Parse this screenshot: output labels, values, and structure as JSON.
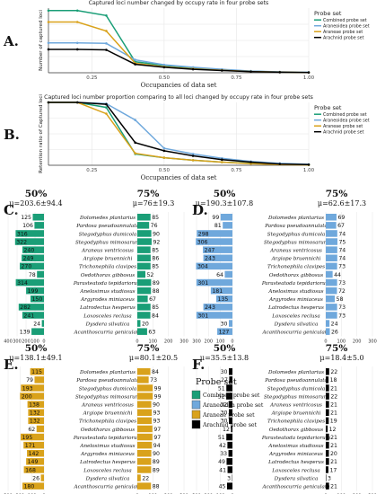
{
  "colors": {
    "combined": "#1a9e77",
    "araneoidea": "#6fa8dc",
    "araneae": "#d9a21b",
    "arachnid": "#000000",
    "olive": "#c8b400",
    "purple": "#8c7bd8",
    "e_value": "#c0392b",
    "grid": "#e6e6e6"
  },
  "species": [
    "Dolomedes plantarius",
    "Pardosa pseudoannulata",
    "Stegodyphus dumicola",
    "Stegodyphus mimosarum",
    "Araneus ventricosus",
    "Argiope bruennichi",
    "Trichonephila clavipes",
    "Oedothorax gibbosus",
    "Parasteatoda tepidariorum",
    "Anelosimus studiosus",
    "Argyrodes miniaceus",
    "Latrodectus hesperus",
    "Loxosceles reclusa",
    "Dysdera silvatica",
    "Acanthoscurria geniculata"
  ],
  "chart_data": [
    {
      "id": "A",
      "type": "line",
      "panel_label": "A.",
      "title": "Captured loci number changed by occupy rate in four probe sets",
      "xlabel": "Occupancies of data set",
      "ylabel": "Number of captured loci",
      "x": [
        0.1,
        0.2,
        0.3,
        0.4,
        0.5,
        0.6,
        0.7,
        0.8,
        0.9,
        1.0
      ],
      "xticks": [
        "0.25",
        "0.50",
        "0.75",
        "1.00"
      ],
      "xtick_values": [
        0.25,
        0.5,
        0.75,
        1.0
      ],
      "xlim": [
        0.1,
        1.0
      ],
      "ylim": [
        0,
        1300
      ],
      "grid": true,
      "legend_title": "Probe set",
      "legend_position": "right",
      "series": [
        {
          "name": "Combined probe set",
          "color_key": "combined",
          "values": [
            1250,
            1250,
            1150,
            220,
            150,
            100,
            60,
            30,
            15,
            8
          ]
        },
        {
          "name": "Araneoidea probe set",
          "color_key": "araneoidea",
          "values": [
            600,
            600,
            590,
            260,
            160,
            110,
            70,
            35,
            18,
            10
          ]
        },
        {
          "name": "Araneae probe set",
          "color_key": "araneae",
          "values": [
            1020,
            1020,
            840,
            190,
            120,
            80,
            50,
            25,
            12,
            6
          ]
        },
        {
          "name": "Arachnid probe set",
          "color_key": "arachnid",
          "values": [
            470,
            470,
            460,
            170,
            110,
            70,
            45,
            22,
            10,
            5
          ]
        }
      ]
    },
    {
      "id": "B",
      "type": "line",
      "panel_label": "B.",
      "title": "Captured loci number proportion comparing to all loci changed by occupy rate in four probe sets",
      "xlabel": "Occupancies of data set",
      "ylabel": "Retention ratio of Captured loci",
      "x": [
        0.1,
        0.2,
        0.3,
        0.4,
        0.5,
        0.6,
        0.7,
        0.8,
        0.9,
        1.0
      ],
      "xticks": [
        "0.25",
        "0.50",
        "0.75",
        "1.00"
      ],
      "xtick_values": [
        0.25,
        0.5,
        0.75,
        1.0
      ],
      "xlim": [
        0.1,
        1.0
      ],
      "ylim": [
        0,
        1.0
      ],
      "grid": true,
      "legend_title": "Probe set",
      "legend_position": "right",
      "series": [
        {
          "name": "Combined probe set",
          "color_key": "combined",
          "values": [
            1.0,
            1.0,
            0.92,
            0.18,
            0.12,
            0.08,
            0.05,
            0.03,
            0.015,
            0.008
          ]
        },
        {
          "name": "Araneoidea probe set",
          "color_key": "araneoidea",
          "values": [
            1.0,
            1.0,
            0.98,
            0.72,
            0.27,
            0.18,
            0.11,
            0.06,
            0.03,
            0.015
          ]
        },
        {
          "name": "Araneae probe set",
          "color_key": "araneae",
          "values": [
            1.0,
            1.0,
            0.82,
            0.19,
            0.12,
            0.08,
            0.05,
            0.025,
            0.012,
            0.006
          ]
        },
        {
          "name": "Arachnid probe set",
          "color_key": "arachnid",
          "values": [
            1.0,
            1.0,
            0.97,
            0.36,
            0.23,
            0.15,
            0.09,
            0.05,
            0.02,
            0.01
          ]
        }
      ]
    },
    {
      "id": "C",
      "type": "bar",
      "panel_label": "C.",
      "color_key": "combined",
      "left_header": "50%",
      "left_mu": "μ=203.6±94.4",
      "left_values": [
        125,
        106,
        316,
        322,
        240,
        249,
        270,
        78,
        314,
        199,
        150,
        282,
        241,
        24,
        139
      ],
      "left_ticks": [
        400,
        300,
        200,
        100,
        0
      ],
      "left_max": 400,
      "right_header": "75%",
      "right_mu": "μ=76±19.3",
      "right_values": [
        85,
        76,
        90,
        92,
        85,
        86,
        85,
        52,
        89,
        88,
        67,
        85,
        84,
        20,
        63
      ],
      "right_ticks": [
        0,
        100,
        200,
        300
      ],
      "right_max": 300
    },
    {
      "id": "D",
      "type": "bar",
      "panel_label": "D.",
      "color_key": "araneoidea",
      "left_header": "50%",
      "left_mu": "μ=190.3±107.8",
      "left_values": [
        99,
        81,
        298,
        306,
        247,
        243,
        304,
        64,
        301,
        181,
        135,
        243,
        301,
        30,
        127
      ],
      "left_ticks": [
        300,
        200,
        100,
        0
      ],
      "left_max": 300,
      "right_header": "75%",
      "right_mu": "μ=62.6±17.3",
      "right_values": [
        69,
        67,
        74,
        75,
        74,
        74,
        73,
        44,
        73,
        72,
        58,
        73,
        73,
        24,
        26
      ],
      "right_ticks": [
        0,
        100,
        200,
        300
      ],
      "right_max": 300
    },
    {
      "id": "E",
      "type": "bar",
      "panel_label": "E.",
      "color_key": "araneae",
      "left_header": "50%",
      "left_mu": "μ=138.1±49.1",
      "left_values": [
        115,
        79,
        193,
        200,
        138,
        132,
        132,
        62,
        195,
        171,
        142,
        149,
        168,
        26,
        180
      ],
      "left_ticks": [
        300,
        200,
        100,
        0
      ],
      "left_max": 300,
      "right_header": "75%",
      "right_mu": "μ=80.1±20.5",
      "right_values": [
        84,
        73,
        99,
        99,
        90,
        93,
        93,
        97,
        97,
        94,
        90,
        89,
        89,
        22,
        88
      ],
      "right_ticks": [
        0,
        100,
        200,
        300
      ],
      "right_max": 300
    },
    {
      "id": "F",
      "type": "bar",
      "panel_label": "F.",
      "color_key": "arachnid",
      "left_header": "50%",
      "left_mu": "μ=35.5±13.8",
      "left_values": [
        30,
        27,
        51,
        52,
        32,
        30,
        30,
        12,
        51,
        42,
        33,
        49,
        41,
        3,
        45
      ],
      "left_ticks": [
        300,
        200,
        100,
        0
      ],
      "left_max": 300,
      "right_header": "75%",
      "right_mu": "μ=18.4±5.0",
      "right_values": [
        22,
        18,
        21,
        22,
        21,
        21,
        19,
        12,
        21,
        21,
        20,
        21,
        17,
        3,
        21
      ],
      "right_ticks": [
        0,
        100,
        200,
        300
      ],
      "right_max": 300
    }
  ],
  "bar_legend": {
    "title": "Probe set",
    "items": [
      {
        "label": "Combined probe set",
        "color_key": "combined"
      },
      {
        "label": "Araneoidea probe set",
        "color_key": "araneoidea"
      },
      {
        "label": "Araneae probe set",
        "color_key": "araneae"
      },
      {
        "label": "Arachnid probe set",
        "color_key": "arachnid"
      }
    ]
  }
}
